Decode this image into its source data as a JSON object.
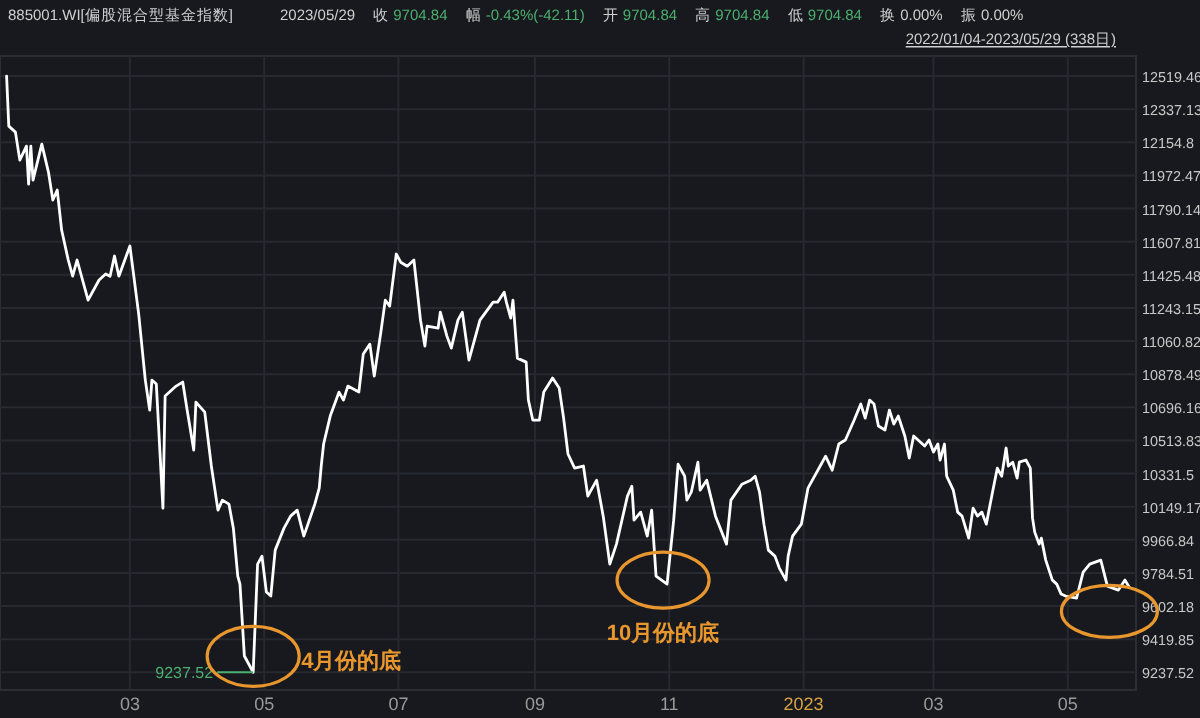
{
  "chart_data": {
    "type": "line",
    "title": "885001.WI[偏股混合型基金指数]",
    "subtitle": "2022/01/04-2023/05/29 (338日)",
    "annotations": [
      "2023/05/29",
      "收 9704.84",
      "幅 -0.43%(-42.11)",
      "开 9704.84",
      "高 9704.84",
      "低 9704.84",
      "换 0.00%",
      "振 0.00%",
      {
        "text": "9237.52",
        "x": "2022-04-26",
        "y": 9237.52
      },
      {
        "text": "4月份的底",
        "x": "2022-04-26",
        "y": 9237.52
      },
      {
        "text": "10月份的底",
        "x": "2022-10-31",
        "y": 9723
      }
    ],
    "x": [
      "2022-01-04",
      "2022-01-05",
      "2022-01-08",
      "2022-01-10",
      "2022-01-13",
      "2022-01-14",
      "2022-01-15",
      "2022-01-16",
      "2022-01-20",
      "2022-01-23",
      "2022-01-25",
      "2022-01-27",
      "2022-01-29",
      "2022-02-01",
      "2022-02-03",
      "2022-02-05",
      "2022-02-10",
      "2022-02-15",
      "2022-02-18",
      "2022-02-20",
      "2022-02-22",
      "2022-02-24",
      "2022-03-01",
      "2022-03-03",
      "2022-03-05",
      "2022-03-08",
      "2022-03-10",
      "2022-03-11",
      "2022-03-13",
      "2022-03-16",
      "2022-03-17",
      "2022-03-22",
      "2022-03-25",
      "2022-03-27",
      "2022-03-30",
      "2022-03-31",
      "2022-04-04",
      "2022-04-07",
      "2022-04-10",
      "2022-04-12",
      "2022-04-15",
      "2022-04-17",
      "2022-04-19",
      "2022-04-20",
      "2022-04-22",
      "2022-04-26",
      "2022-04-28",
      "2022-04-30",
      "2022-05-02",
      "2022-05-04",
      "2022-05-06",
      "2022-05-10",
      "2022-05-13",
      "2022-05-16",
      "2022-05-19",
      "2022-05-24",
      "2022-05-26",
      "2022-05-27",
      "2022-05-28",
      "2022-05-31",
      "2022-06-04",
      "2022-06-06",
      "2022-06-08",
      "2022-06-13",
      "2022-06-15",
      "2022-06-18",
      "2022-06-20",
      "2022-06-23",
      "2022-06-25",
      "2022-06-27",
      "2022-06-30",
      "2022-07-02",
      "2022-07-05",
      "2022-07-08",
      "2022-07-09",
      "2022-07-11",
      "2022-07-13",
      "2022-07-14",
      "2022-07-19",
      "2022-07-20",
      "2022-07-23",
      "2022-07-25",
      "2022-07-28",
      "2022-07-30",
      "2022-08-02",
      "2022-08-07",
      "2022-08-09",
      "2022-08-13",
      "2022-08-15",
      "2022-08-18",
      "2022-08-19",
      "2022-08-21",
      "2022-08-22",
      "2022-08-24",
      "2022-08-28",
      "2022-08-29",
      "2022-08-31",
      "2022-09-03",
      "2022-09-05",
      "2022-09-09",
      "2022-09-12",
      "2022-09-14",
      "2022-09-16",
      "2022-09-19",
      "2022-09-23",
      "2022-09-25",
      "2022-09-29",
      "2022-10-02",
      "2022-10-05",
      "2022-10-08",
      "2022-10-13",
      "2022-10-15",
      "2022-10-16",
      "2022-10-19",
      "2022-10-22",
      "2022-10-24",
      "2022-10-26",
      "2022-10-31",
      "2022-11-03",
      "2022-11-05",
      "2022-11-08",
      "2022-11-09",
      "2022-11-11",
      "2022-11-14",
      "2022-11-15",
      "2022-11-18",
      "2022-11-22",
      "2022-11-27",
      "2022-11-29",
      "2022-12-04",
      "2022-12-08",
      "2022-12-10",
      "2022-12-12",
      "2022-12-14",
      "2022-12-16",
      "2022-12-19",
      "2022-12-21",
      "2022-12-24",
      "2022-12-25",
      "2022-12-27",
      "2022-12-31",
      "2023-01-03",
      "2023-01-05",
      "2023-01-09",
      "2023-01-11",
      "2023-01-14",
      "2023-01-17",
      "2023-01-20",
      "2023-01-24",
      "2023-01-27",
      "2023-01-29",
      "2023-01-31",
      "2023-02-02",
      "2023-02-04",
      "2023-02-07",
      "2023-02-09",
      "2023-02-11",
      "2023-02-13",
      "2023-02-16",
      "2023-02-18",
      "2023-02-20",
      "2023-02-25",
      "2023-02-27",
      "2023-03-01",
      "2023-03-03",
      "2023-03-04",
      "2023-03-06",
      "2023-03-07",
      "2023-03-10",
      "2023-03-12",
      "2023-03-14",
      "2023-03-17",
      "2023-03-19",
      "2023-03-21",
      "2023-03-23",
      "2023-03-25",
      "2023-03-28",
      "2023-03-30",
      "2023-04-01",
      "2023-04-03",
      "2023-04-04",
      "2023-04-06",
      "2023-04-08",
      "2023-04-09",
      "2023-04-12",
      "2023-04-14",
      "2023-04-15",
      "2023-04-16",
      "2023-04-18",
      "2023-04-19",
      "2023-04-21",
      "2023-04-24",
      "2023-04-26",
      "2023-04-28",
      "2023-04-30",
      "2023-05-05",
      "2023-05-08",
      "2023-05-11",
      "2023-05-16",
      "2023-05-19",
      "2023-05-24",
      "2023-05-27",
      "2023-05-29"
    ],
    "series": [
      {
        "color": "#ffffff",
        "values": [
          12519,
          12244,
          12211,
          12057,
          12134,
          11925,
          12134,
          11947,
          12145,
          11991,
          11837,
          11892,
          11672,
          11507,
          11418,
          11507,
          11286,
          11397,
          11430,
          11418,
          11529,
          11418,
          11584,
          11397,
          11209,
          10846,
          10681,
          10846,
          10824,
          10141,
          10758,
          10813,
          10835,
          10681,
          10461,
          10725,
          10670,
          10373,
          10130,
          10185,
          10163,
          10031,
          9767,
          9723,
          9327,
          9237.52,
          9833,
          9877,
          9679,
          9657,
          9910,
          10031,
          10097,
          10130,
          9987,
          10163,
          10251,
          10383,
          10494,
          10648,
          10780,
          10736,
          10813,
          10780,
          10989,
          11044,
          10868,
          11110,
          11286,
          11253,
          11540,
          11495,
          11473,
          11507,
          11397,
          11176,
          11033,
          11143,
          11132,
          11220,
          11088,
          11022,
          11176,
          11220,
          10956,
          11176,
          11209,
          11275,
          11275,
          11330,
          11275,
          11187,
          11286,
          10967,
          10945,
          10736,
          10626,
          10626,
          10780,
          10857,
          10802,
          10637,
          10439,
          10361,
          10373,
          10207,
          10295,
          10097,
          9833,
          9943,
          10207,
          10262,
          10075,
          10119,
          9987,
          10130,
          9767,
          9723,
          10075,
          10383,
          10317,
          10185,
          10229,
          10394,
          10240,
          10295,
          10097,
          9943,
          10185,
          10273,
          10295,
          10317,
          10229,
          10053,
          9910,
          9877,
          9811,
          9745,
          9877,
          9987,
          10053,
          10251,
          10295,
          10383,
          10427,
          10350,
          10494,
          10516,
          10626,
          10714,
          10637,
          10736,
          10714,
          10593,
          10571,
          10681,
          10604,
          10648,
          10538,
          10417,
          10538,
          10483,
          10516,
          10450,
          10494,
          10406,
          10494,
          10317,
          10240,
          10119,
          10097,
          9976,
          10141,
          10097,
          10119,
          10053,
          10240,
          10361,
          10317,
          10472,
          10373,
          10394,
          10306,
          10394,
          10406,
          10361,
          10086,
          10009,
          9943,
          9976,
          9855,
          9745,
          9723,
          9668,
          9657,
          9646,
          9789,
          9833,
          9855,
          9712,
          9690,
          9745,
          9704.84
        ]
      }
    ],
    "xlim": [
      "2022-01-01",
      "2023-06-01"
    ],
    "xticks": [
      {
        "value": "2022-03-01",
        "label": "03"
      },
      {
        "value": "2022-05-01",
        "label": "05"
      },
      {
        "value": "2022-07-01",
        "label": "07"
      },
      {
        "value": "2022-09-01",
        "label": "09"
      },
      {
        "value": "2022-11-01",
        "label": "11"
      },
      {
        "value": "2023-01-01",
        "label": "2023"
      },
      {
        "value": "2023-03-01",
        "label": "03"
      },
      {
        "value": "2023-05-01",
        "label": "05"
      }
    ],
    "ylim": [
      9140,
      12630
    ],
    "yticks": [
      9237.52,
      9419.85,
      9602.18,
      9784.51,
      9966.84,
      10149.17,
      10331.5,
      10513.83,
      10696.16,
      10878.49,
      11060.82,
      11243.15,
      11425.48,
      11607.81,
      11790.14,
      11972.47,
      12154.8,
      12337.13,
      12519.46
    ],
    "grid": true,
    "marker": "none",
    "line_style": "solid"
  }
}
